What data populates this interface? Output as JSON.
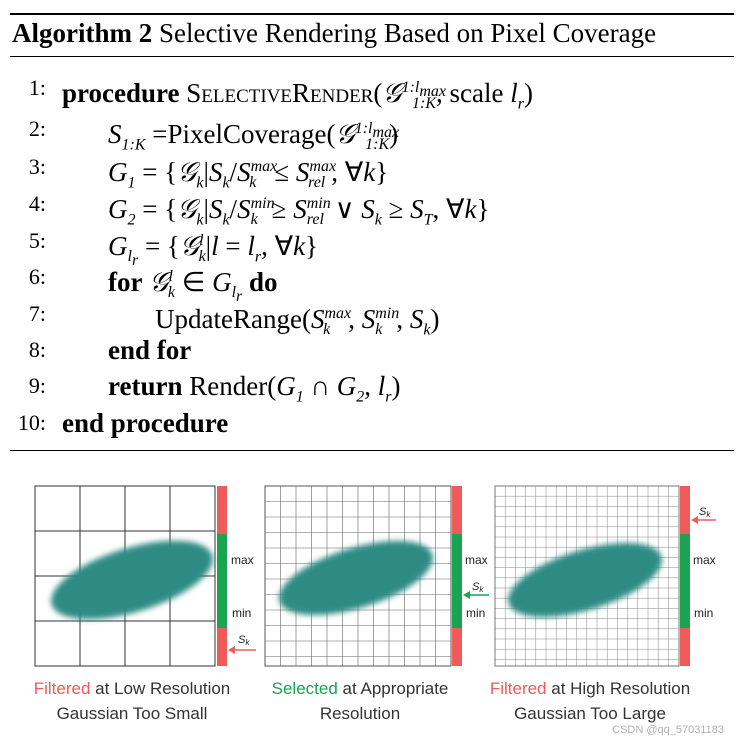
{
  "algorithm": {
    "label": "Algorithm 2",
    "title": "Selective Rendering Based on Pixel Coverage",
    "lines": [
      {
        "num": "1:"
      },
      {
        "num": "2:"
      },
      {
        "num": "3:"
      },
      {
        "num": "4:"
      },
      {
        "num": "5:"
      },
      {
        "num": "6:"
      },
      {
        "num": "7:"
      },
      {
        "num": "8:"
      },
      {
        "num": "9:"
      },
      {
        "num": "10:"
      }
    ],
    "kw": {
      "procedure": "procedure",
      "func": "SelectiveRender",
      "scale": ", scale ",
      "pixelcov": "PixelCoverage",
      "for": "for",
      "do": "do",
      "update": "UpdateRange",
      "endfor": "end for",
      "return": "return",
      "render": "Render",
      "endproc": "end procedure"
    }
  },
  "figure": {
    "colors": {
      "filtered": "#f05a5a",
      "selected": "#1aa350",
      "gaussian": "#2e8b84"
    },
    "labels": {
      "max": "max",
      "min": "min",
      "sk": "S",
      "sk_sub": "k"
    },
    "panels": [
      {
        "word": "Filtered",
        "rest": " at Low Resolution",
        "line2": "Gaussian Too Small",
        "word_color": "#f05a5a"
      },
      {
        "word": "Selected",
        "rest": " at Appropriate",
        "line2": "Resolution",
        "word_color": "#1aa350"
      },
      {
        "word": "Filtered",
        "rest": " at High Resolution",
        "line2": "Gaussian Too Large",
        "word_color": "#f05a5a"
      }
    ]
  },
  "watermark": "CSDN @qq_57031183"
}
